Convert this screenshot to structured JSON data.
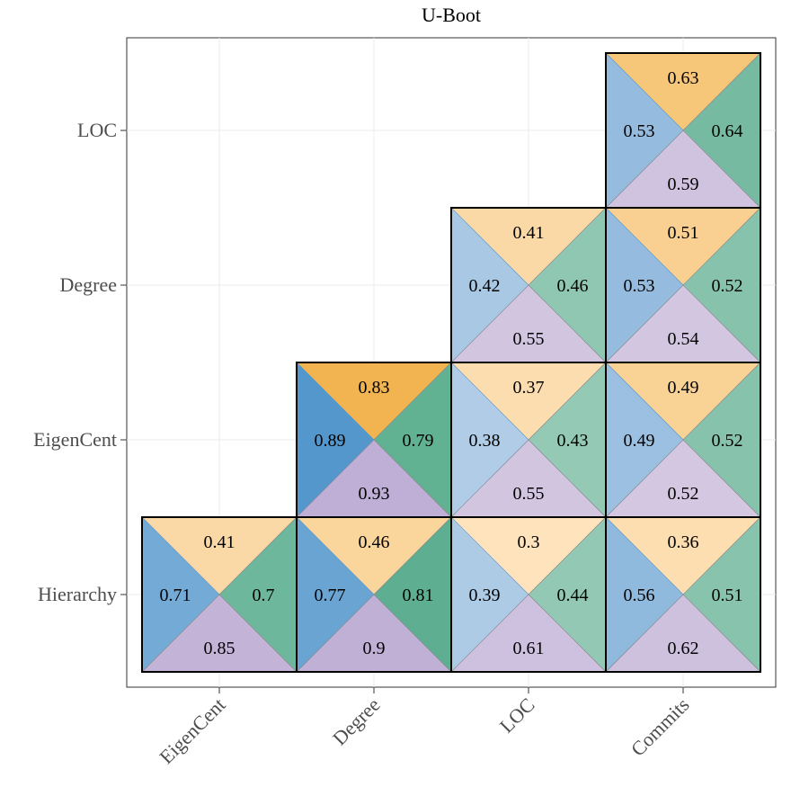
{
  "chart_data": {
    "type": "heatmap",
    "title": "U-Boot",
    "x_categories": [
      "EigenCent",
      "Degree",
      "LOC",
      "Commits"
    ],
    "y_categories": [
      "Hierarchy",
      "EigenCent",
      "Degree",
      "LOC"
    ],
    "xlabel": "",
    "ylabel": "",
    "grid": true,
    "triangle_colors": {
      "top": {
        "low": "#fee3bd",
        "high": "#efab3c"
      },
      "left": {
        "low": "#bed4ea",
        "high": "#4d93cb"
      },
      "right": {
        "low": "#a6d2c1",
        "high": "#4da786"
      },
      "bottom": {
        "low": "#ddd4e8",
        "high": "#bfaed5"
      }
    },
    "cells": [
      {
        "x": "EigenCent",
        "y": "Hierarchy",
        "top": 0.41,
        "left": 0.71,
        "right": 0.7,
        "bottom": 0.85
      },
      {
        "x": "Degree",
        "y": "Hierarchy",
        "top": 0.46,
        "left": 0.77,
        "right": 0.81,
        "bottom": 0.9
      },
      {
        "x": "LOC",
        "y": "Hierarchy",
        "top": 0.3,
        "left": 0.39,
        "right": 0.44,
        "bottom": 0.61
      },
      {
        "x": "Commits",
        "y": "Hierarchy",
        "top": 0.36,
        "left": 0.56,
        "right": 0.51,
        "bottom": 0.62
      },
      {
        "x": "Degree",
        "y": "EigenCent",
        "top": 0.83,
        "left": 0.89,
        "right": 0.79,
        "bottom": 0.93
      },
      {
        "x": "LOC",
        "y": "EigenCent",
        "top": 0.37,
        "left": 0.38,
        "right": 0.43,
        "bottom": 0.55
      },
      {
        "x": "Commits",
        "y": "EigenCent",
        "top": 0.49,
        "left": 0.49,
        "right": 0.52,
        "bottom": 0.52
      },
      {
        "x": "LOC",
        "y": "Degree",
        "top": 0.41,
        "left": 0.42,
        "right": 0.46,
        "bottom": 0.55
      },
      {
        "x": "Commits",
        "y": "Degree",
        "top": 0.51,
        "left": 0.53,
        "right": 0.52,
        "bottom": 0.54
      },
      {
        "x": "Commits",
        "y": "LOC",
        "top": 0.63,
        "left": 0.53,
        "right": 0.64,
        "bottom": 0.59
      }
    ]
  }
}
